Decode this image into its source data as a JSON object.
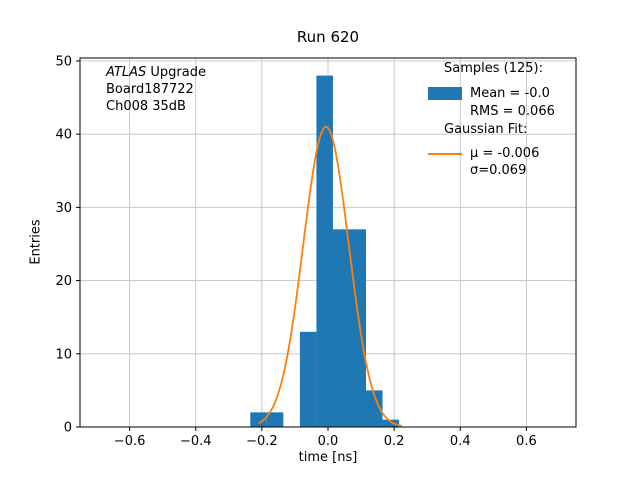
{
  "figure": {
    "title": "Run 620",
    "xlabel": "time [ns]",
    "ylabel": "Entries"
  },
  "annotation": {
    "line1_italic": "ATLAS",
    "line1_rest": " Upgrade",
    "line2": "Board187722",
    "line3": "Ch008 35dB"
  },
  "legend": {
    "samples_header": "Samples (125):",
    "mean_label": "Mean = -0.0",
    "rms_label": "RMS = 0.066",
    "fit_header": "Gaussian Fit:",
    "mu_label": "μ = -0.006",
    "sigma_label": "σ=0.069"
  },
  "colors": {
    "histogram": "#1f77b4",
    "fit": "#ff7f0e",
    "grid": "#c0c0c0",
    "axes": "#000000",
    "background": "#ffffff"
  },
  "chart_data": {
    "type": "bar",
    "subtype": "histogram-with-gaussian-fit",
    "title": "Run 620",
    "xlabel": "time [ns]",
    "ylabel": "Entries",
    "xlim": [
      -0.75,
      0.75
    ],
    "ylim": [
      0,
      50.4
    ],
    "xticks": [
      -0.6,
      -0.4,
      -0.2,
      0.0,
      0.2,
      0.4,
      0.6
    ],
    "xtick_labels": [
      "−0.6",
      "−0.4",
      "−0.2",
      "0.0",
      "0.2",
      "0.4",
      "0.6"
    ],
    "yticks": [
      0,
      10,
      20,
      30,
      40,
      50
    ],
    "ytick_labels": [
      "0",
      "10",
      "20",
      "30",
      "40",
      "50"
    ],
    "grid": true,
    "legend_position": "upper right",
    "histogram": {
      "bin_edges": [
        -0.235,
        -0.185,
        -0.135,
        -0.085,
        -0.035,
        0.015,
        0.065,
        0.115,
        0.165,
        0.215
      ],
      "counts": [
        2,
        2,
        0,
        13,
        48,
        27,
        27,
        5,
        1
      ],
      "total_samples": 125,
      "mean": -0.0,
      "rms": 0.066
    },
    "gaussian_fit": {
      "amplitude": 41,
      "mu": -0.006,
      "sigma": 0.069,
      "x_range": [
        -0.21,
        0.225
      ]
    }
  }
}
